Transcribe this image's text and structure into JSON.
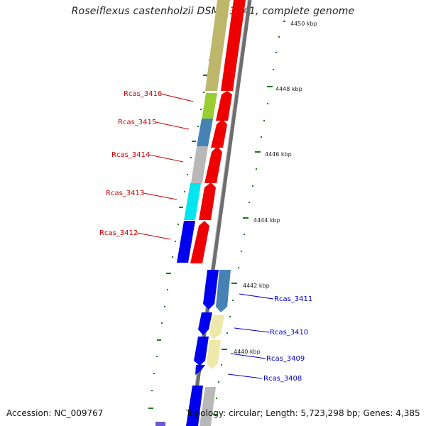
{
  "title": "Roseiflexus castenholzii DSM 13941, complete genome",
  "footer": {
    "accession": "Accession: NC_009767",
    "topology": "Topology: circular; Length: 5,723,298 bp; Genes: 4,385"
  },
  "colors": {
    "backbone": "#808080",
    "tick": "#1a7a1a",
    "reverse_label": "#cc0000",
    "forward_label": "#0000cc"
  },
  "kbp_labels": [
    "4450 kbp",
    "4448 kbp",
    "4446 kbp",
    "4444 kbp",
    "4442 kbp",
    "4440 kbp"
  ],
  "reverse_genes": [
    {
      "id": "Rcas_3416",
      "color": "#9acd32"
    },
    {
      "id": "Rcas_3415",
      "color": "#4682b4"
    },
    {
      "id": "Rcas_3414",
      "color": "#b8b8b8"
    },
    {
      "id": "Rcas_3413",
      "color": "#00e5ee"
    },
    {
      "id": "Rcas_3412",
      "color": "#0000ee"
    }
  ],
  "forward_genes": [
    {
      "id": "Rcas_3411",
      "color": "#4682b4"
    },
    {
      "id": "Rcas_3410",
      "color": "#eee8aa"
    },
    {
      "id": "Rcas_3409",
      "color": "#eee8aa"
    },
    {
      "id": "Rcas_3408",
      "color": "#b8b8b8"
    }
  ]
}
